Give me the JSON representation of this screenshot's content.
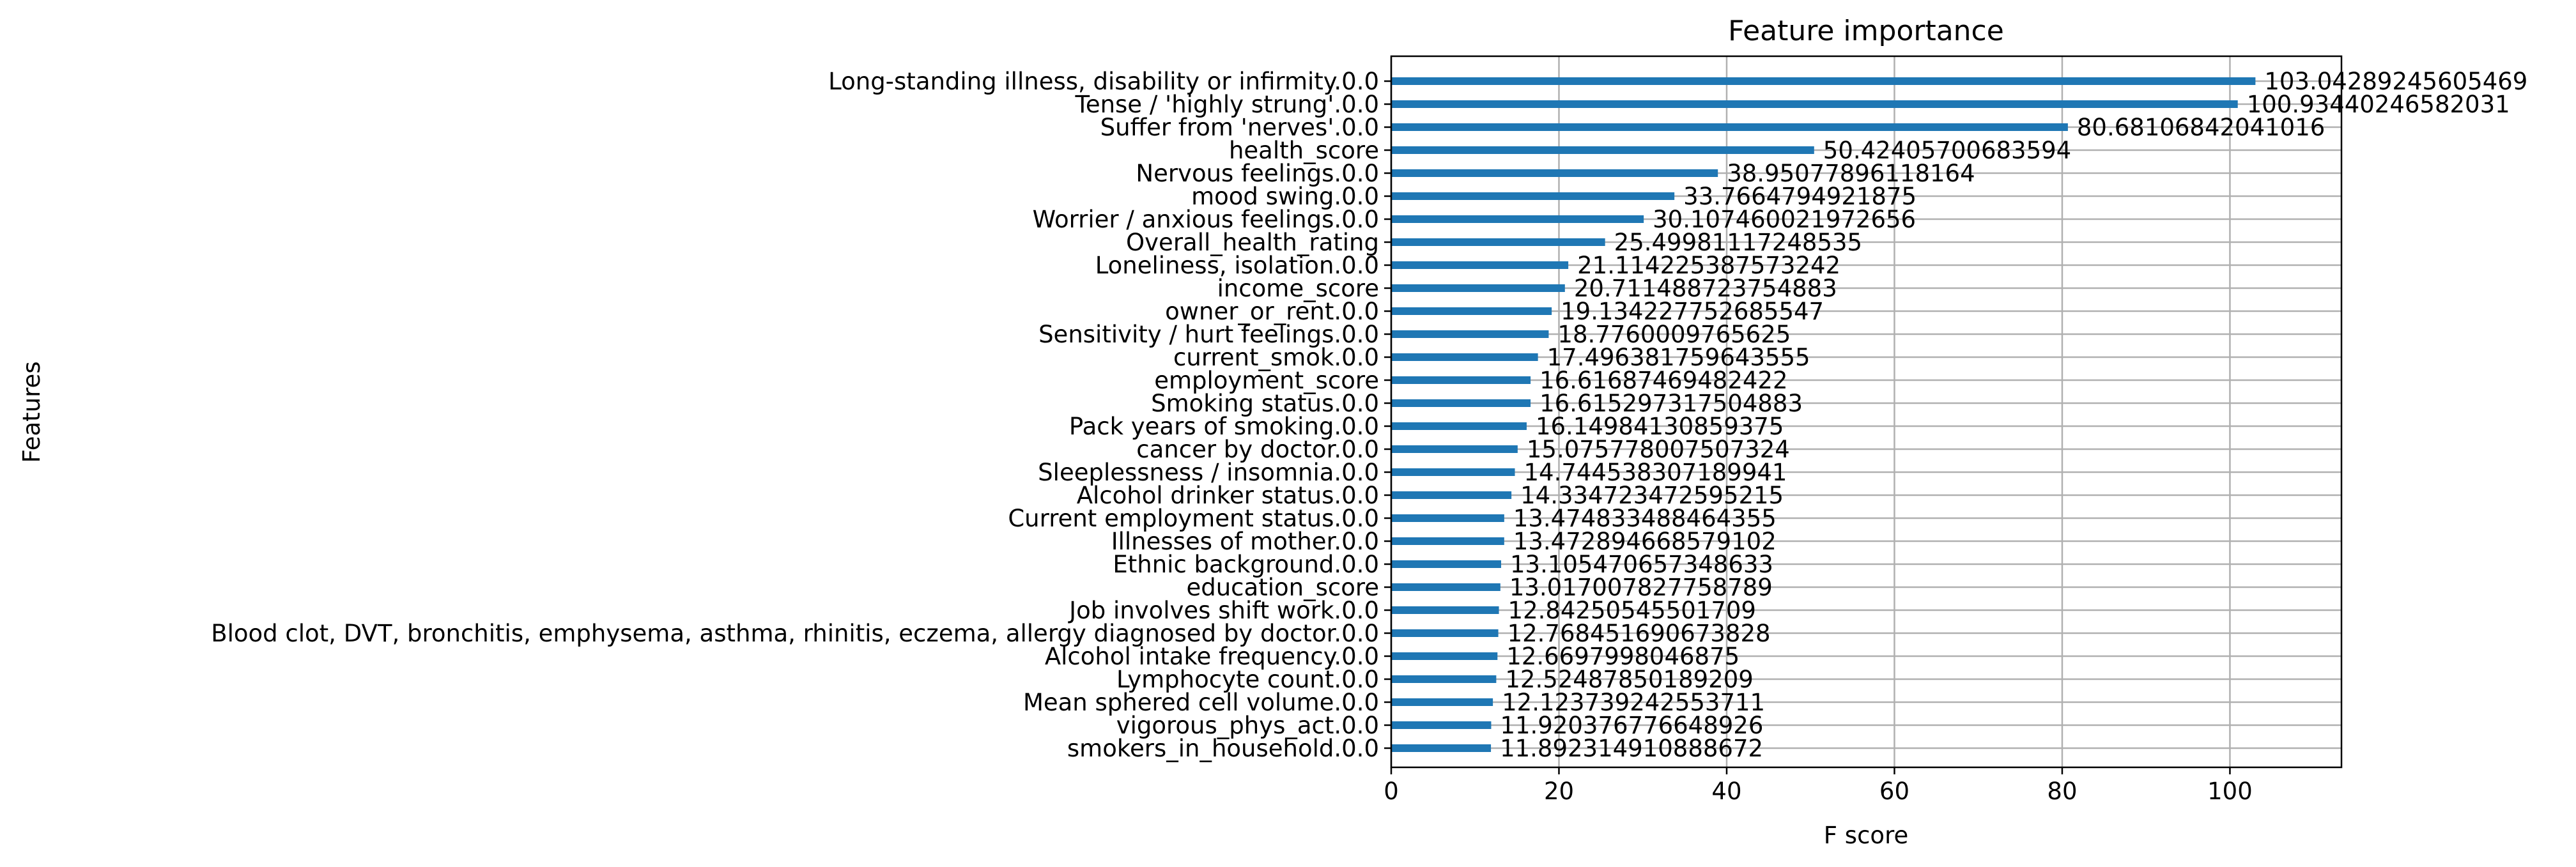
{
  "chart_data": {
    "type": "bar",
    "orientation": "horizontal",
    "title": "Feature importance",
    "xlabel": "F score",
    "ylabel": "Features",
    "xlim": [
      0,
      113.3
    ],
    "xticks": [
      0,
      20,
      40,
      60,
      80,
      100
    ],
    "grid": true,
    "categories": [
      "Long-standing illness, disability or infirmity.0.0",
      "Tense / 'highly strung'.0.0",
      "Suffer from 'nerves'.0.0",
      "health_score",
      "Nervous feelings.0.0",
      "mood swing.0.0",
      "Worrier / anxious feelings.0.0",
      "Overall_health_rating",
      "Loneliness, isolation.0.0",
      "income_score",
      "owner_or_rent.0.0",
      "Sensitivity / hurt feelings.0.0",
      "current_smok.0.0",
      "employment_score",
      "Smoking status.0.0",
      "Pack years of smoking.0.0",
      "cancer by doctor.0.0",
      "Sleeplessness / insomnia.0.0",
      "Alcohol drinker status.0.0",
      "Current employment status.0.0",
      "Illnesses of mother.0.0",
      "Ethnic background.0.0",
      "education_score",
      "Job involves shift work.0.0",
      "Blood clot, DVT, bronchitis, emphysema, asthma, rhinitis, eczema, allergy diagnosed by doctor.0.0",
      "Alcohol intake frequency.0.0",
      "Lymphocyte count.0.0",
      "Mean sphered cell volume.0.0",
      "vigorous_phys_act.0.0",
      "smokers_in_household.0.0"
    ],
    "values": [
      103.04289245605469,
      100.93440246582031,
      80.68106842041016,
      50.42405700683594,
      38.95077896118164,
      33.7664794921875,
      30.107460021972656,
      25.49981117248535,
      21.114225387573242,
      20.711488723754883,
      19.134227752685547,
      18.7760009765625,
      17.496381759643555,
      16.61687469482422,
      16.615297317504883,
      16.14984130859375,
      15.075778007507324,
      14.744538307189941,
      14.334723472595215,
      13.474833488464355,
      13.472894668579102,
      13.105470657348633,
      13.017007827758789,
      12.84250545501709,
      12.768451690673828,
      12.6697998046875,
      12.52487850189209,
      12.123739242553711,
      11.920376776648926,
      11.892314910888672
    ],
    "value_labels": [
      "103.04289245605469",
      "100.93440246582031",
      "80.68106842041016",
      "50.42405700683594",
      "38.95077896118164",
      "33.7664794921875",
      "30.107460021972656",
      "25.49981117248535",
      "21.114225387573242",
      "20.711488723754883",
      "19.134227752685547",
      "18.7760009765625",
      "17.496381759643555",
      "16.61687469482422",
      "16.615297317504883",
      "16.14984130859375",
      "15.075778007507324",
      "14.744538307189941",
      "14.334723472595215",
      "13.474833488464355",
      "13.472894668579102",
      "13.105470657348633",
      "13.017007827758789",
      "12.84250545501709",
      "12.768451690673828",
      "12.6697998046875",
      "12.52487850189209",
      "12.123739242553711",
      "11.920376776648926",
      "11.892314910888672"
    ],
    "colors": {
      "bar": "#1f77b4",
      "grid": "#b0b0b0",
      "axis": "#000000"
    }
  }
}
